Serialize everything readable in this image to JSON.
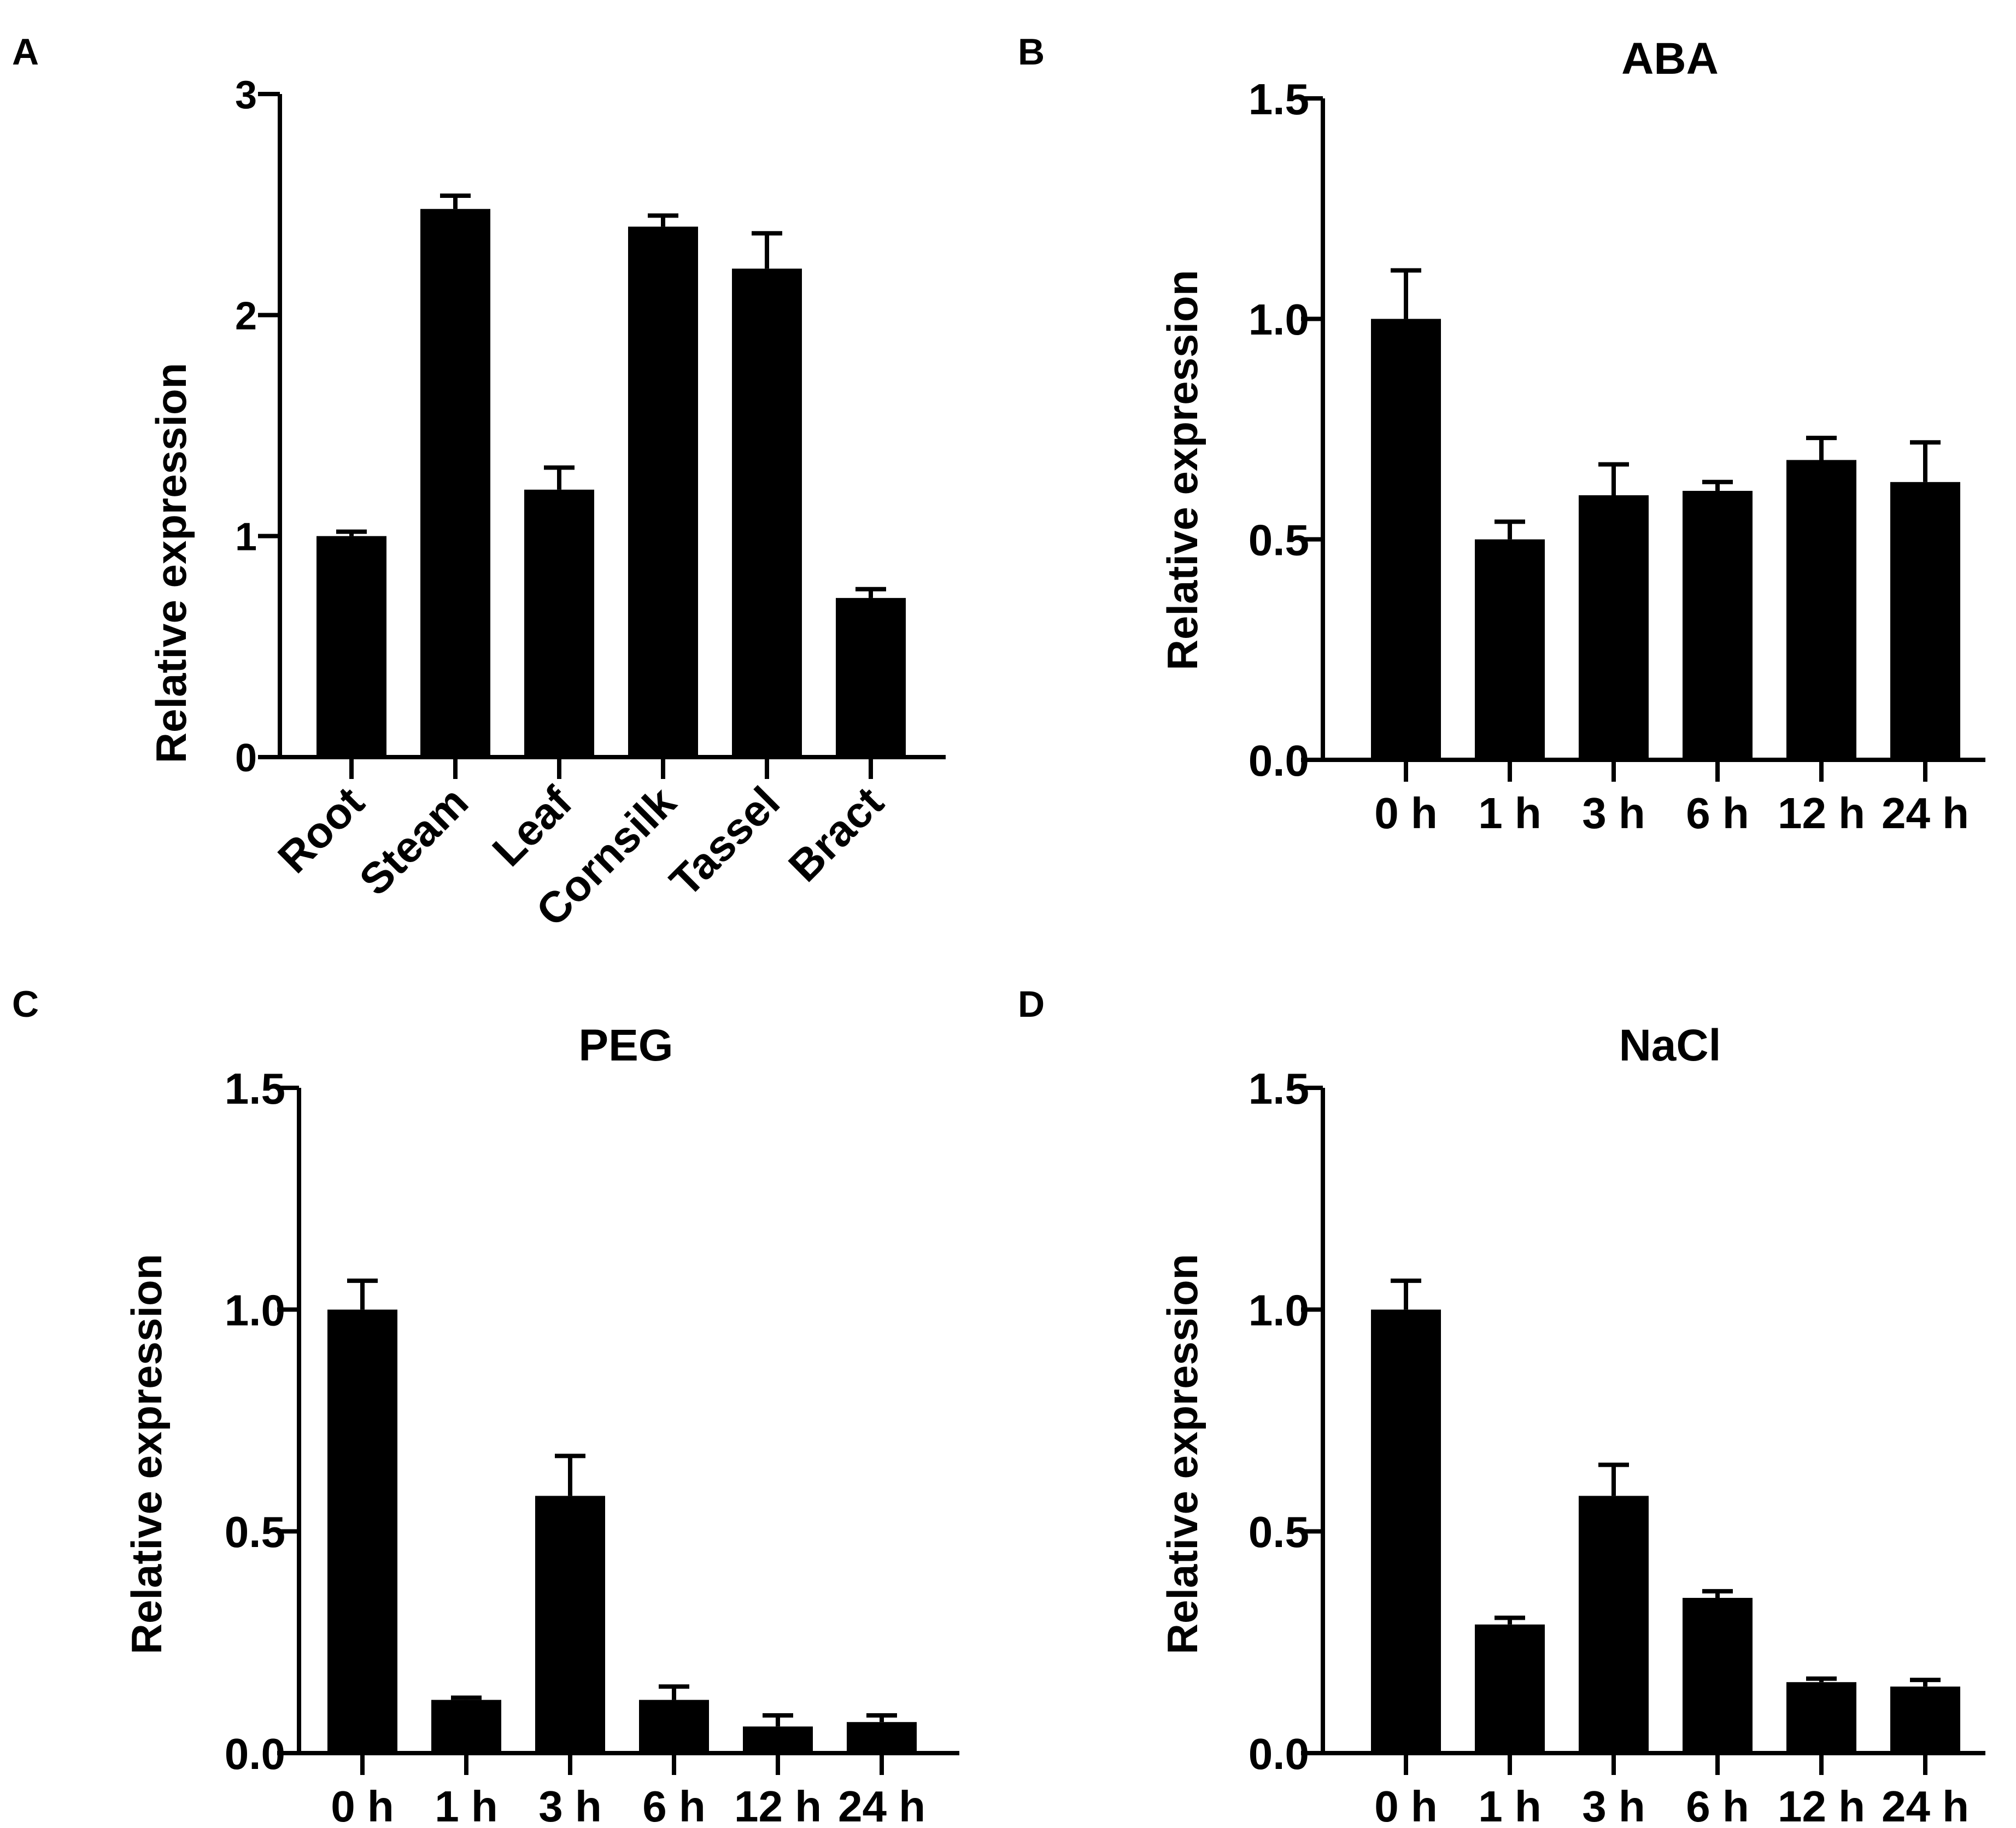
{
  "figure": {
    "background": "#ffffff",
    "bar_color": "#000000"
  },
  "chart_data": [
    {
      "panel": "A",
      "type": "bar",
      "title": "",
      "xlabel": "",
      "ylabel": "Relative expression",
      "ylim": [
        0,
        3
      ],
      "yticks": [
        "0",
        "1",
        "2",
        "3"
      ],
      "categories": [
        "Root",
        "Steam",
        "Leaf",
        "Cornsilk",
        "Tassel",
        "Bract"
      ],
      "values": [
        1.0,
        2.48,
        1.21,
        2.4,
        2.21,
        0.72
      ],
      "errors": [
        0.02,
        0.06,
        0.1,
        0.05,
        0.16,
        0.04
      ],
      "rotate_labels": true
    },
    {
      "panel": "B",
      "type": "bar",
      "title": "ABA",
      "xlabel": "",
      "ylabel": "Relative expression",
      "ylim": [
        0,
        1.5
      ],
      "yticks": [
        "0.0",
        "0.5",
        "1.0",
        "1.5"
      ],
      "categories": [
        "0 h",
        "1 h",
        "3 h",
        "6 h",
        "12 h",
        "24 h"
      ],
      "values": [
        1.0,
        0.5,
        0.6,
        0.61,
        0.68,
        0.63
      ],
      "errors": [
        0.11,
        0.04,
        0.07,
        0.02,
        0.05,
        0.09
      ],
      "rotate_labels": false
    },
    {
      "panel": "C",
      "type": "bar",
      "title": "PEG",
      "xlabel": "",
      "ylabel": "Relative expression",
      "ylim": [
        0,
        1.5
      ],
      "yticks": [
        "0.0",
        "0.5",
        "1.0",
        "1.5"
      ],
      "categories": [
        "0 h",
        "1 h",
        "3 h",
        "6 h",
        "12 h",
        "24 h"
      ],
      "values": [
        1.0,
        0.12,
        0.58,
        0.12,
        0.06,
        0.07
      ],
      "errors": [
        0.065,
        0.005,
        0.09,
        0.03,
        0.025,
        0.015
      ],
      "rotate_labels": false
    },
    {
      "panel": "D",
      "type": "bar",
      "title": "NaCl",
      "xlabel": "",
      "ylabel": "Relative expression",
      "ylim": [
        0,
        1.5
      ],
      "yticks": [
        "0.0",
        "0.5",
        "1.0",
        "1.5"
      ],
      "categories": [
        "0 h",
        "1 h",
        "3 h",
        "6 h",
        "12 h",
        "24 h"
      ],
      "values": [
        1.0,
        0.29,
        0.58,
        0.35,
        0.16,
        0.15
      ],
      "errors": [
        0.065,
        0.015,
        0.07,
        0.015,
        0.008,
        0.015
      ],
      "rotate_labels": false
    }
  ]
}
